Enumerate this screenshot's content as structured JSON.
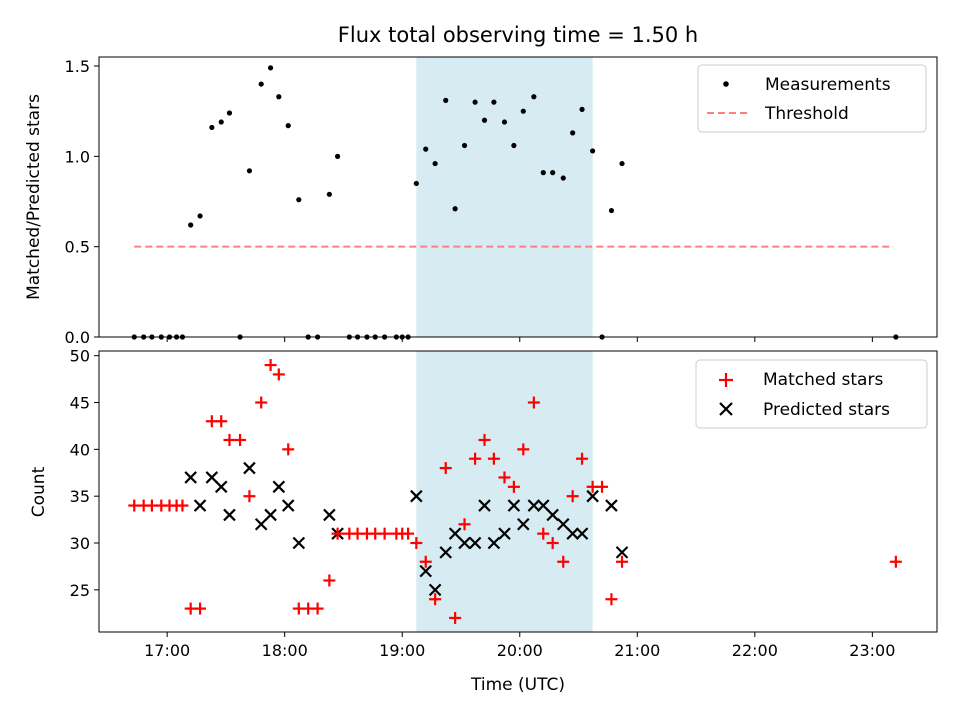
{
  "title": "Flux total observing time = 1.50 h",
  "xlabel": "Time (UTC)",
  "colors": {
    "highlight": "#add8e6",
    "matched": "#ff0000",
    "predicted": "#000000",
    "threshold": "#ff7f7f",
    "measurement": "#000000"
  },
  "chart_data": [
    {
      "type": "scatter",
      "title": "Flux total observing time = 1.50 h",
      "ylabel": "Matched/Predicted stars",
      "xlim": [
        16.42,
        23.55
      ],
      "ylim": [
        0,
        1.55
      ],
      "yticks": [
        0.0,
        0.5,
        1.0,
        1.5
      ],
      "ytick_labels": [
        "0.0",
        "0.5",
        "1.0",
        "1.5"
      ],
      "highlight_span": [
        19.12,
        20.62
      ],
      "threshold": {
        "value": 0.5,
        "x": [
          16.72,
          23.18
        ]
      },
      "legend": [
        "Measurements",
        "Threshold"
      ],
      "measurements": {
        "x": [
          16.72,
          16.8,
          16.87,
          16.95,
          17.02,
          17.08,
          17.13,
          17.2,
          17.28,
          17.38,
          17.46,
          17.53,
          17.62,
          17.7,
          17.8,
          17.88,
          17.95,
          18.03,
          18.12,
          18.2,
          18.28,
          18.38,
          18.45,
          18.55,
          18.62,
          18.7,
          18.77,
          18.85,
          18.95,
          19.0,
          19.05,
          19.12,
          19.2,
          19.28,
          19.37,
          19.45,
          19.53,
          19.62,
          19.7,
          19.78,
          19.87,
          19.95,
          20.03,
          20.12,
          20.2,
          20.28,
          20.37,
          20.45,
          20.53,
          20.62,
          20.7,
          20.78,
          20.87,
          23.2
        ],
        "y": [
          0,
          0,
          0,
          0,
          0,
          0,
          0,
          0.62,
          0.67,
          1.16,
          1.19,
          1.24,
          0,
          0.92,
          1.4,
          1.49,
          1.33,
          1.17,
          0.76,
          0,
          0,
          0.79,
          1.0,
          0,
          0,
          0,
          0,
          0,
          0,
          0,
          0,
          0.85,
          1.04,
          0.96,
          1.31,
          0.71,
          1.06,
          1.3,
          1.2,
          1.3,
          1.19,
          1.06,
          1.25,
          1.33,
          0.91,
          0.91,
          0.88,
          1.13,
          1.26,
          1.03,
          0,
          0.7,
          0.96,
          0
        ]
      }
    },
    {
      "type": "scatter",
      "ylabel": "Count",
      "xlim": [
        16.42,
        23.55
      ],
      "ylim": [
        20.5,
        50.5
      ],
      "yticks": [
        25,
        30,
        35,
        40,
        45,
        50
      ],
      "ytick_labels": [
        "25",
        "30",
        "35",
        "40",
        "45",
        "50"
      ],
      "xticks": [
        17,
        18,
        19,
        20,
        21,
        22,
        23
      ],
      "xtick_labels": [
        "17:00",
        "18:00",
        "19:00",
        "20:00",
        "21:00",
        "22:00",
        "23:00"
      ],
      "highlight_span": [
        19.12,
        20.62
      ],
      "legend": [
        "Matched stars",
        "Predicted stars"
      ],
      "series": [
        {
          "name": "Matched stars",
          "marker": "+",
          "x": [
            16.72,
            16.8,
            16.87,
            16.95,
            17.02,
            17.08,
            17.13,
            17.2,
            17.28,
            17.38,
            17.46,
            17.53,
            17.62,
            17.7,
            17.8,
            17.88,
            17.95,
            18.03,
            18.12,
            18.2,
            18.28,
            18.38,
            18.45,
            18.55,
            18.62,
            18.7,
            18.77,
            18.85,
            18.95,
            19.0,
            19.05,
            19.12,
            19.2,
            19.28,
            19.37,
            19.45,
            19.53,
            19.62,
            19.7,
            19.78,
            19.87,
            19.95,
            20.03,
            20.12,
            20.2,
            20.28,
            20.37,
            20.45,
            20.53,
            20.62,
            20.7,
            20.78,
            20.87,
            23.2
          ],
          "y": [
            34,
            34,
            34,
            34,
            34,
            34,
            34,
            23,
            23,
            43,
            43,
            41,
            41,
            35,
            45,
            49,
            48,
            40,
            23,
            23,
            23,
            26,
            31,
            31,
            31,
            31,
            31,
            31,
            31,
            31,
            31,
            30,
            28,
            24,
            38,
            22,
            32,
            39,
            41,
            39,
            37,
            36,
            40,
            45,
            31,
            30,
            28,
            35,
            39,
            36,
            36,
            24,
            28,
            28
          ]
        },
        {
          "name": "Predicted stars",
          "marker": "x",
          "x": [
            17.2,
            17.28,
            17.38,
            17.46,
            17.53,
            17.7,
            17.8,
            17.88,
            17.95,
            18.03,
            18.12,
            18.38,
            18.45,
            19.12,
            19.2,
            19.28,
            19.37,
            19.45,
            19.53,
            19.62,
            19.7,
            19.78,
            19.87,
            19.95,
            20.03,
            20.12,
            20.2,
            20.28,
            20.37,
            20.45,
            20.53,
            20.62,
            20.78,
            20.87
          ],
          "y": [
            37,
            34,
            37,
            36,
            33,
            38,
            32,
            33,
            36,
            34,
            30,
            33,
            31,
            35,
            27,
            25,
            29,
            31,
            30,
            30,
            34,
            30,
            31,
            34,
            32,
            34,
            34,
            33,
            32,
            31,
            31,
            35,
            34,
            29
          ]
        }
      ]
    }
  ]
}
